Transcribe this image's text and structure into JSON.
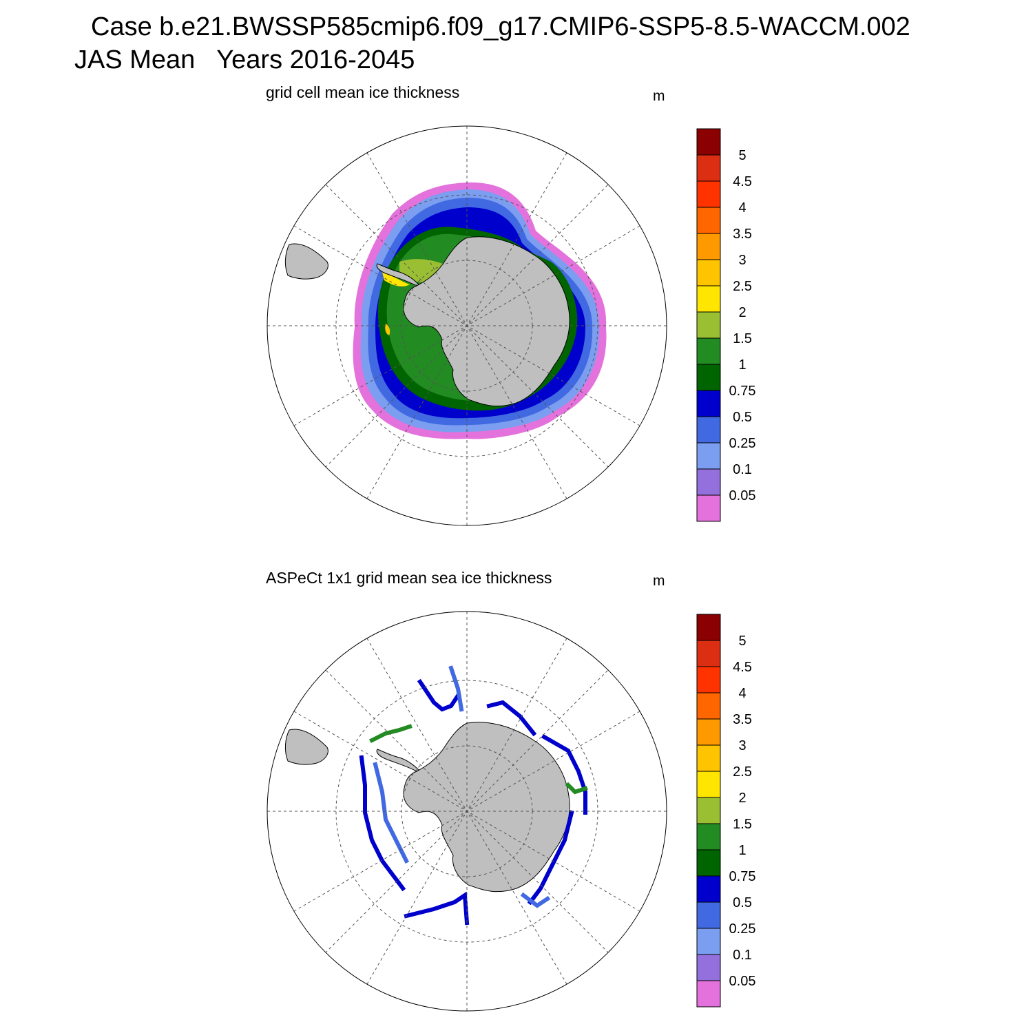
{
  "header": {
    "case_line": "Case b.e21.BWSSP585cmip6.f09_g17.CMIP6-SSP5-8.5-WACCM.002",
    "period_line": "JAS Mean   Years 2016-2045"
  },
  "panels": [
    {
      "title": "grid cell mean ice thickness",
      "unit": "m"
    },
    {
      "title": "ASPeCt 1x1 grid mean sea ice thickness",
      "unit": "m"
    }
  ],
  "colorbar": {
    "labels": [
      "5",
      "4.5",
      "4",
      "3.5",
      "3",
      "2.5",
      "2",
      "1.5",
      "1",
      "0.75",
      "0.5",
      "0.25",
      "0.1",
      "0.05"
    ],
    "colors": [
      "#8b0000",
      "#dc2e12",
      "#ff3300",
      "#ff6600",
      "#ff9900",
      "#ffc400",
      "#ffe600",
      "#9abf32",
      "#228b22",
      "#006400",
      "#0000cd",
      "#4169e1",
      "#7b9ef0",
      "#9370db",
      "#e472dc"
    ]
  },
  "colors": {
    "land": "#bfbfbf",
    "coastline": "#000000",
    "grid": "#555555"
  }
}
